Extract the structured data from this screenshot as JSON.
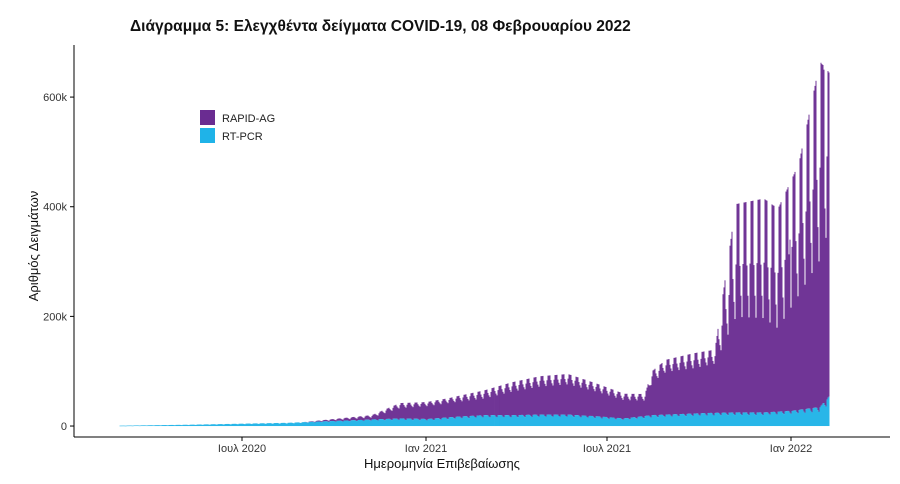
{
  "chart_data": {
    "type": "bar",
    "title": "Διάγραμμα 5: Ελεγχθέντα δείγματα COVID-19, 08 Φεβρουαρίου 2022",
    "xlabel": "Ημερομηνία Επιβεβαίωσης",
    "ylabel": "Αριθμός Δειγμάτων",
    "stacked": true,
    "x_start_date": "2020-03-01",
    "x_end_date": "2022-02-08",
    "xlim": [
      "2020-01-15",
      "2022-04-10"
    ],
    "ylim": [
      -20000,
      695000
    ],
    "yticks": [
      0,
      200000,
      400000,
      600000
    ],
    "ytick_labels": [
      "0",
      "200k",
      "400k",
      "600k"
    ],
    "xticks": [
      "2020-07-01",
      "2021-01-01",
      "2021-07-01",
      "2022-01-01"
    ],
    "xtick_labels": [
      "Ιουλ 2020",
      "Ιαν 2021",
      "Ιουλ 2021",
      "Ιαν 2022"
    ],
    "legend": {
      "position": "top-left"
    },
    "grid": false,
    "series": [
      {
        "name": "RAPID-AG",
        "color": "#6a2c91",
        "weekly_baseline": [
          [
            0,
            0
          ],
          [
            26,
            0
          ],
          [
            36,
            5000
          ],
          [
            40,
            20000
          ],
          [
            43,
            24000
          ],
          [
            47,
            28000
          ],
          [
            52,
            32000
          ],
          [
            56,
            44000
          ],
          [
            60,
            52000
          ],
          [
            64,
            56000
          ],
          [
            68,
            46000
          ],
          [
            72,
            34000
          ],
          [
            75,
            30000
          ],
          [
            76,
            60000
          ],
          [
            78,
            78000
          ],
          [
            82,
            82000
          ],
          [
            85,
            90000
          ],
          [
            88,
            135000
          ],
          [
            92,
            130000
          ],
          [
            94,
            110000
          ],
          [
            97,
            165000
          ],
          [
            100,
            200000
          ],
          [
            102,
            300000
          ],
          [
            104,
            310000
          ],
          [
            106,
            240000
          ],
          [
            108,
            245000
          ]
        ],
        "weekly_peak": [
          [
            0,
            0
          ],
          [
            26,
            0
          ],
          [
            36,
            8000
          ],
          [
            40,
            28000
          ],
          [
            43,
            30000
          ],
          [
            47,
            35000
          ],
          [
            52,
            45000
          ],
          [
            56,
            60000
          ],
          [
            60,
            70000
          ],
          [
            64,
            74000
          ],
          [
            68,
            60000
          ],
          [
            72,
            45000
          ],
          [
            75,
            40000
          ],
          [
            76,
            80000
          ],
          [
            78,
            100000
          ],
          [
            82,
            110000
          ],
          [
            85,
            115000
          ],
          [
            88,
            380000
          ],
          [
            92,
            390000
          ],
          [
            94,
            370000
          ],
          [
            97,
            450000
          ],
          [
            100,
            630000
          ],
          [
            102,
            570000
          ],
          [
            104,
            600000
          ],
          [
            106,
            550000
          ],
          [
            108,
            510000
          ]
        ],
        "notable_peaks": [
          [
            95.7,
            340000
          ],
          [
            98.4,
            300000
          ],
          [
            99.2,
            420000
          ],
          [
            100.1,
            660000
          ],
          [
            100.6,
            650000
          ],
          [
            103.8,
            650000
          ],
          [
            104.3,
            570000
          ],
          [
            107.5,
            510000
          ]
        ]
      },
      {
        "name": "RT-PCR",
        "color": "#1fb3e8",
        "weekly_baseline": [
          [
            0,
            400
          ],
          [
            10,
            1500
          ],
          [
            18,
            3000
          ],
          [
            24,
            4000
          ],
          [
            30,
            7000
          ],
          [
            36,
            9000
          ],
          [
            40,
            10000
          ],
          [
            44,
            9000
          ],
          [
            48,
            12000
          ],
          [
            52,
            14000
          ],
          [
            56,
            14000
          ],
          [
            60,
            15000
          ],
          [
            64,
            15000
          ],
          [
            68,
            13000
          ],
          [
            72,
            10000
          ],
          [
            76,
            14000
          ],
          [
            80,
            16000
          ],
          [
            84,
            17000
          ],
          [
            88,
            18000
          ],
          [
            92,
            18000
          ],
          [
            96,
            20000
          ],
          [
            100,
            22000
          ],
          [
            103,
            50000
          ],
          [
            104,
            52000
          ],
          [
            106,
            30000
          ],
          [
            108,
            25000
          ]
        ],
        "weekly_peak": [
          [
            0,
            700
          ],
          [
            10,
            2500
          ],
          [
            18,
            4500
          ],
          [
            24,
            6000
          ],
          [
            30,
            9000
          ],
          [
            36,
            12000
          ],
          [
            40,
            14000
          ],
          [
            44,
            13000
          ],
          [
            48,
            17000
          ],
          [
            52,
            20000
          ],
          [
            56,
            20000
          ],
          [
            60,
            21000
          ],
          [
            64,
            21000
          ],
          [
            68,
            18000
          ],
          [
            72,
            14000
          ],
          [
            76,
            20000
          ],
          [
            80,
            22000
          ],
          [
            84,
            24000
          ],
          [
            88,
            25000
          ],
          [
            92,
            25000
          ],
          [
            96,
            28000
          ],
          [
            100,
            35000
          ],
          [
            103,
            80000
          ],
          [
            104,
            75000
          ],
          [
            106,
            45000
          ],
          [
            108,
            35000
          ]
        ]
      }
    ]
  }
}
